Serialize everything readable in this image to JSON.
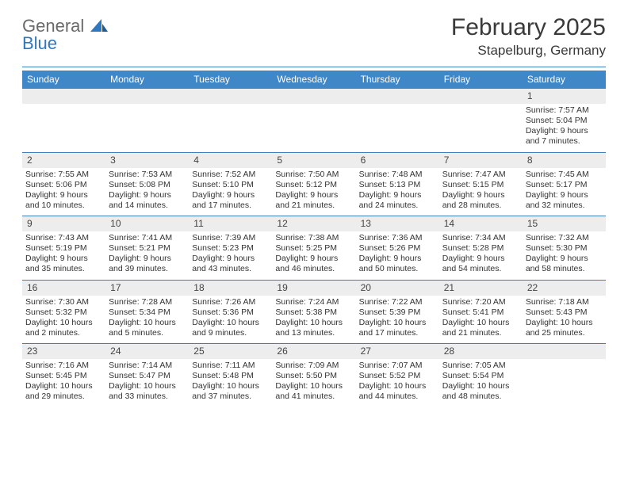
{
  "logo": {
    "word1": "General",
    "word2": "Blue"
  },
  "title": "February 2025",
  "location": "Stapelburg, Germany",
  "colors": {
    "header_bar": "#3f87c7",
    "rule": "#3f7fbf",
    "daynum_bg": "#ededed",
    "logo_gray": "#6a6a6a",
    "logo_blue": "#2f78bf",
    "text": "#333333"
  },
  "typography": {
    "title_fontsize": 30,
    "location_fontsize": 17,
    "dow_fontsize": 12,
    "body_fontsize": 10.5
  },
  "day_labels": [
    "Sunday",
    "Monday",
    "Tuesday",
    "Wednesday",
    "Thursday",
    "Friday",
    "Saturday"
  ],
  "weeks": [
    [
      {
        "n": "",
        "sunrise": "",
        "sunset": "",
        "daylight": ""
      },
      {
        "n": "",
        "sunrise": "",
        "sunset": "",
        "daylight": ""
      },
      {
        "n": "",
        "sunrise": "",
        "sunset": "",
        "daylight": ""
      },
      {
        "n": "",
        "sunrise": "",
        "sunset": "",
        "daylight": ""
      },
      {
        "n": "",
        "sunrise": "",
        "sunset": "",
        "daylight": ""
      },
      {
        "n": "",
        "sunrise": "",
        "sunset": "",
        "daylight": ""
      },
      {
        "n": "1",
        "sunrise": "Sunrise: 7:57 AM",
        "sunset": "Sunset: 5:04 PM",
        "daylight": "Daylight: 9 hours and 7 minutes."
      }
    ],
    [
      {
        "n": "2",
        "sunrise": "Sunrise: 7:55 AM",
        "sunset": "Sunset: 5:06 PM",
        "daylight": "Daylight: 9 hours and 10 minutes."
      },
      {
        "n": "3",
        "sunrise": "Sunrise: 7:53 AM",
        "sunset": "Sunset: 5:08 PM",
        "daylight": "Daylight: 9 hours and 14 minutes."
      },
      {
        "n": "4",
        "sunrise": "Sunrise: 7:52 AM",
        "sunset": "Sunset: 5:10 PM",
        "daylight": "Daylight: 9 hours and 17 minutes."
      },
      {
        "n": "5",
        "sunrise": "Sunrise: 7:50 AM",
        "sunset": "Sunset: 5:12 PM",
        "daylight": "Daylight: 9 hours and 21 minutes."
      },
      {
        "n": "6",
        "sunrise": "Sunrise: 7:48 AM",
        "sunset": "Sunset: 5:13 PM",
        "daylight": "Daylight: 9 hours and 24 minutes."
      },
      {
        "n": "7",
        "sunrise": "Sunrise: 7:47 AM",
        "sunset": "Sunset: 5:15 PM",
        "daylight": "Daylight: 9 hours and 28 minutes."
      },
      {
        "n": "8",
        "sunrise": "Sunrise: 7:45 AM",
        "sunset": "Sunset: 5:17 PM",
        "daylight": "Daylight: 9 hours and 32 minutes."
      }
    ],
    [
      {
        "n": "9",
        "sunrise": "Sunrise: 7:43 AM",
        "sunset": "Sunset: 5:19 PM",
        "daylight": "Daylight: 9 hours and 35 minutes."
      },
      {
        "n": "10",
        "sunrise": "Sunrise: 7:41 AM",
        "sunset": "Sunset: 5:21 PM",
        "daylight": "Daylight: 9 hours and 39 minutes."
      },
      {
        "n": "11",
        "sunrise": "Sunrise: 7:39 AM",
        "sunset": "Sunset: 5:23 PM",
        "daylight": "Daylight: 9 hours and 43 minutes."
      },
      {
        "n": "12",
        "sunrise": "Sunrise: 7:38 AM",
        "sunset": "Sunset: 5:25 PM",
        "daylight": "Daylight: 9 hours and 46 minutes."
      },
      {
        "n": "13",
        "sunrise": "Sunrise: 7:36 AM",
        "sunset": "Sunset: 5:26 PM",
        "daylight": "Daylight: 9 hours and 50 minutes."
      },
      {
        "n": "14",
        "sunrise": "Sunrise: 7:34 AM",
        "sunset": "Sunset: 5:28 PM",
        "daylight": "Daylight: 9 hours and 54 minutes."
      },
      {
        "n": "15",
        "sunrise": "Sunrise: 7:32 AM",
        "sunset": "Sunset: 5:30 PM",
        "daylight": "Daylight: 9 hours and 58 minutes."
      }
    ],
    [
      {
        "n": "16",
        "sunrise": "Sunrise: 7:30 AM",
        "sunset": "Sunset: 5:32 PM",
        "daylight": "Daylight: 10 hours and 2 minutes."
      },
      {
        "n": "17",
        "sunrise": "Sunrise: 7:28 AM",
        "sunset": "Sunset: 5:34 PM",
        "daylight": "Daylight: 10 hours and 5 minutes."
      },
      {
        "n": "18",
        "sunrise": "Sunrise: 7:26 AM",
        "sunset": "Sunset: 5:36 PM",
        "daylight": "Daylight: 10 hours and 9 minutes."
      },
      {
        "n": "19",
        "sunrise": "Sunrise: 7:24 AM",
        "sunset": "Sunset: 5:38 PM",
        "daylight": "Daylight: 10 hours and 13 minutes."
      },
      {
        "n": "20",
        "sunrise": "Sunrise: 7:22 AM",
        "sunset": "Sunset: 5:39 PM",
        "daylight": "Daylight: 10 hours and 17 minutes."
      },
      {
        "n": "21",
        "sunrise": "Sunrise: 7:20 AM",
        "sunset": "Sunset: 5:41 PM",
        "daylight": "Daylight: 10 hours and 21 minutes."
      },
      {
        "n": "22",
        "sunrise": "Sunrise: 7:18 AM",
        "sunset": "Sunset: 5:43 PM",
        "daylight": "Daylight: 10 hours and 25 minutes."
      }
    ],
    [
      {
        "n": "23",
        "sunrise": "Sunrise: 7:16 AM",
        "sunset": "Sunset: 5:45 PM",
        "daylight": "Daylight: 10 hours and 29 minutes."
      },
      {
        "n": "24",
        "sunrise": "Sunrise: 7:14 AM",
        "sunset": "Sunset: 5:47 PM",
        "daylight": "Daylight: 10 hours and 33 minutes."
      },
      {
        "n": "25",
        "sunrise": "Sunrise: 7:11 AM",
        "sunset": "Sunset: 5:48 PM",
        "daylight": "Daylight: 10 hours and 37 minutes."
      },
      {
        "n": "26",
        "sunrise": "Sunrise: 7:09 AM",
        "sunset": "Sunset: 5:50 PM",
        "daylight": "Daylight: 10 hours and 41 minutes."
      },
      {
        "n": "27",
        "sunrise": "Sunrise: 7:07 AM",
        "sunset": "Sunset: 5:52 PM",
        "daylight": "Daylight: 10 hours and 44 minutes."
      },
      {
        "n": "28",
        "sunrise": "Sunrise: 7:05 AM",
        "sunset": "Sunset: 5:54 PM",
        "daylight": "Daylight: 10 hours and 48 minutes."
      },
      {
        "n": "",
        "sunrise": "",
        "sunset": "",
        "daylight": ""
      }
    ]
  ]
}
